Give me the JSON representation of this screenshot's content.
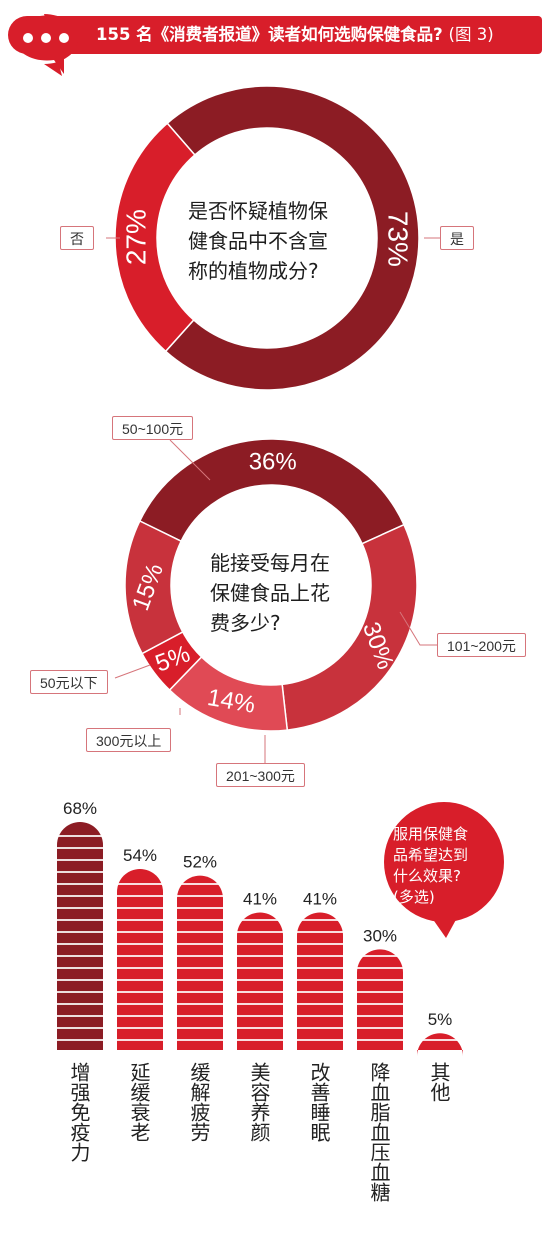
{
  "header": {
    "title": "155 名《消费者报道》读者如何选购保健食品?",
    "figure_label": "(图 3)"
  },
  "colors": {
    "dark_red": "#8c1c24",
    "red": "#d81e2a",
    "mid_red": "#c8323c",
    "light_red": "#e04a55"
  },
  "chart_data": [
    {
      "type": "pie",
      "title": "是否怀疑植物保健食品中不含宣称的植物成分?",
      "title_lines": [
        "是否怀疑植物保",
        "健食品中不含宣",
        "称的植物成分?"
      ],
      "slices": [
        {
          "label": "是",
          "value": 73,
          "display": "73%"
        },
        {
          "label": "否",
          "value": 27,
          "display": "27%"
        }
      ]
    },
    {
      "type": "pie",
      "title": "能接受每月在保健食品上花费多少?",
      "title_lines": [
        "能接受每月在",
        "保健食品上花",
        "费多少?"
      ],
      "slices": [
        {
          "label": "50~100元",
          "value": 36,
          "display": "36%"
        },
        {
          "label": "101~200元",
          "value": 30,
          "display": "30%"
        },
        {
          "label": "201~300元",
          "value": 14,
          "display": "14%"
        },
        {
          "label": "300元以上",
          "value": 5,
          "display": "5%"
        },
        {
          "label": "50元以下",
          "value": 15,
          "display": "15%"
        }
      ]
    },
    {
      "type": "bar",
      "title": "服用保健食品希望达到什么效果?(多选)",
      "title_lines": [
        "服用保健食",
        "品希望达到",
        "什么效果?",
        "(多选)"
      ],
      "categories": [
        "增强免疫力",
        "延缓衰老",
        "缓解疲劳",
        "美容养颜",
        "改善睡眠",
        "降血脂血压血糖",
        "其他"
      ],
      "values": [
        68,
        54,
        52,
        41,
        41,
        30,
        5
      ],
      "value_labels": [
        "68%",
        "54%",
        "52%",
        "41%",
        "41%",
        "30%",
        "5%"
      ],
      "unit": "%"
    }
  ]
}
